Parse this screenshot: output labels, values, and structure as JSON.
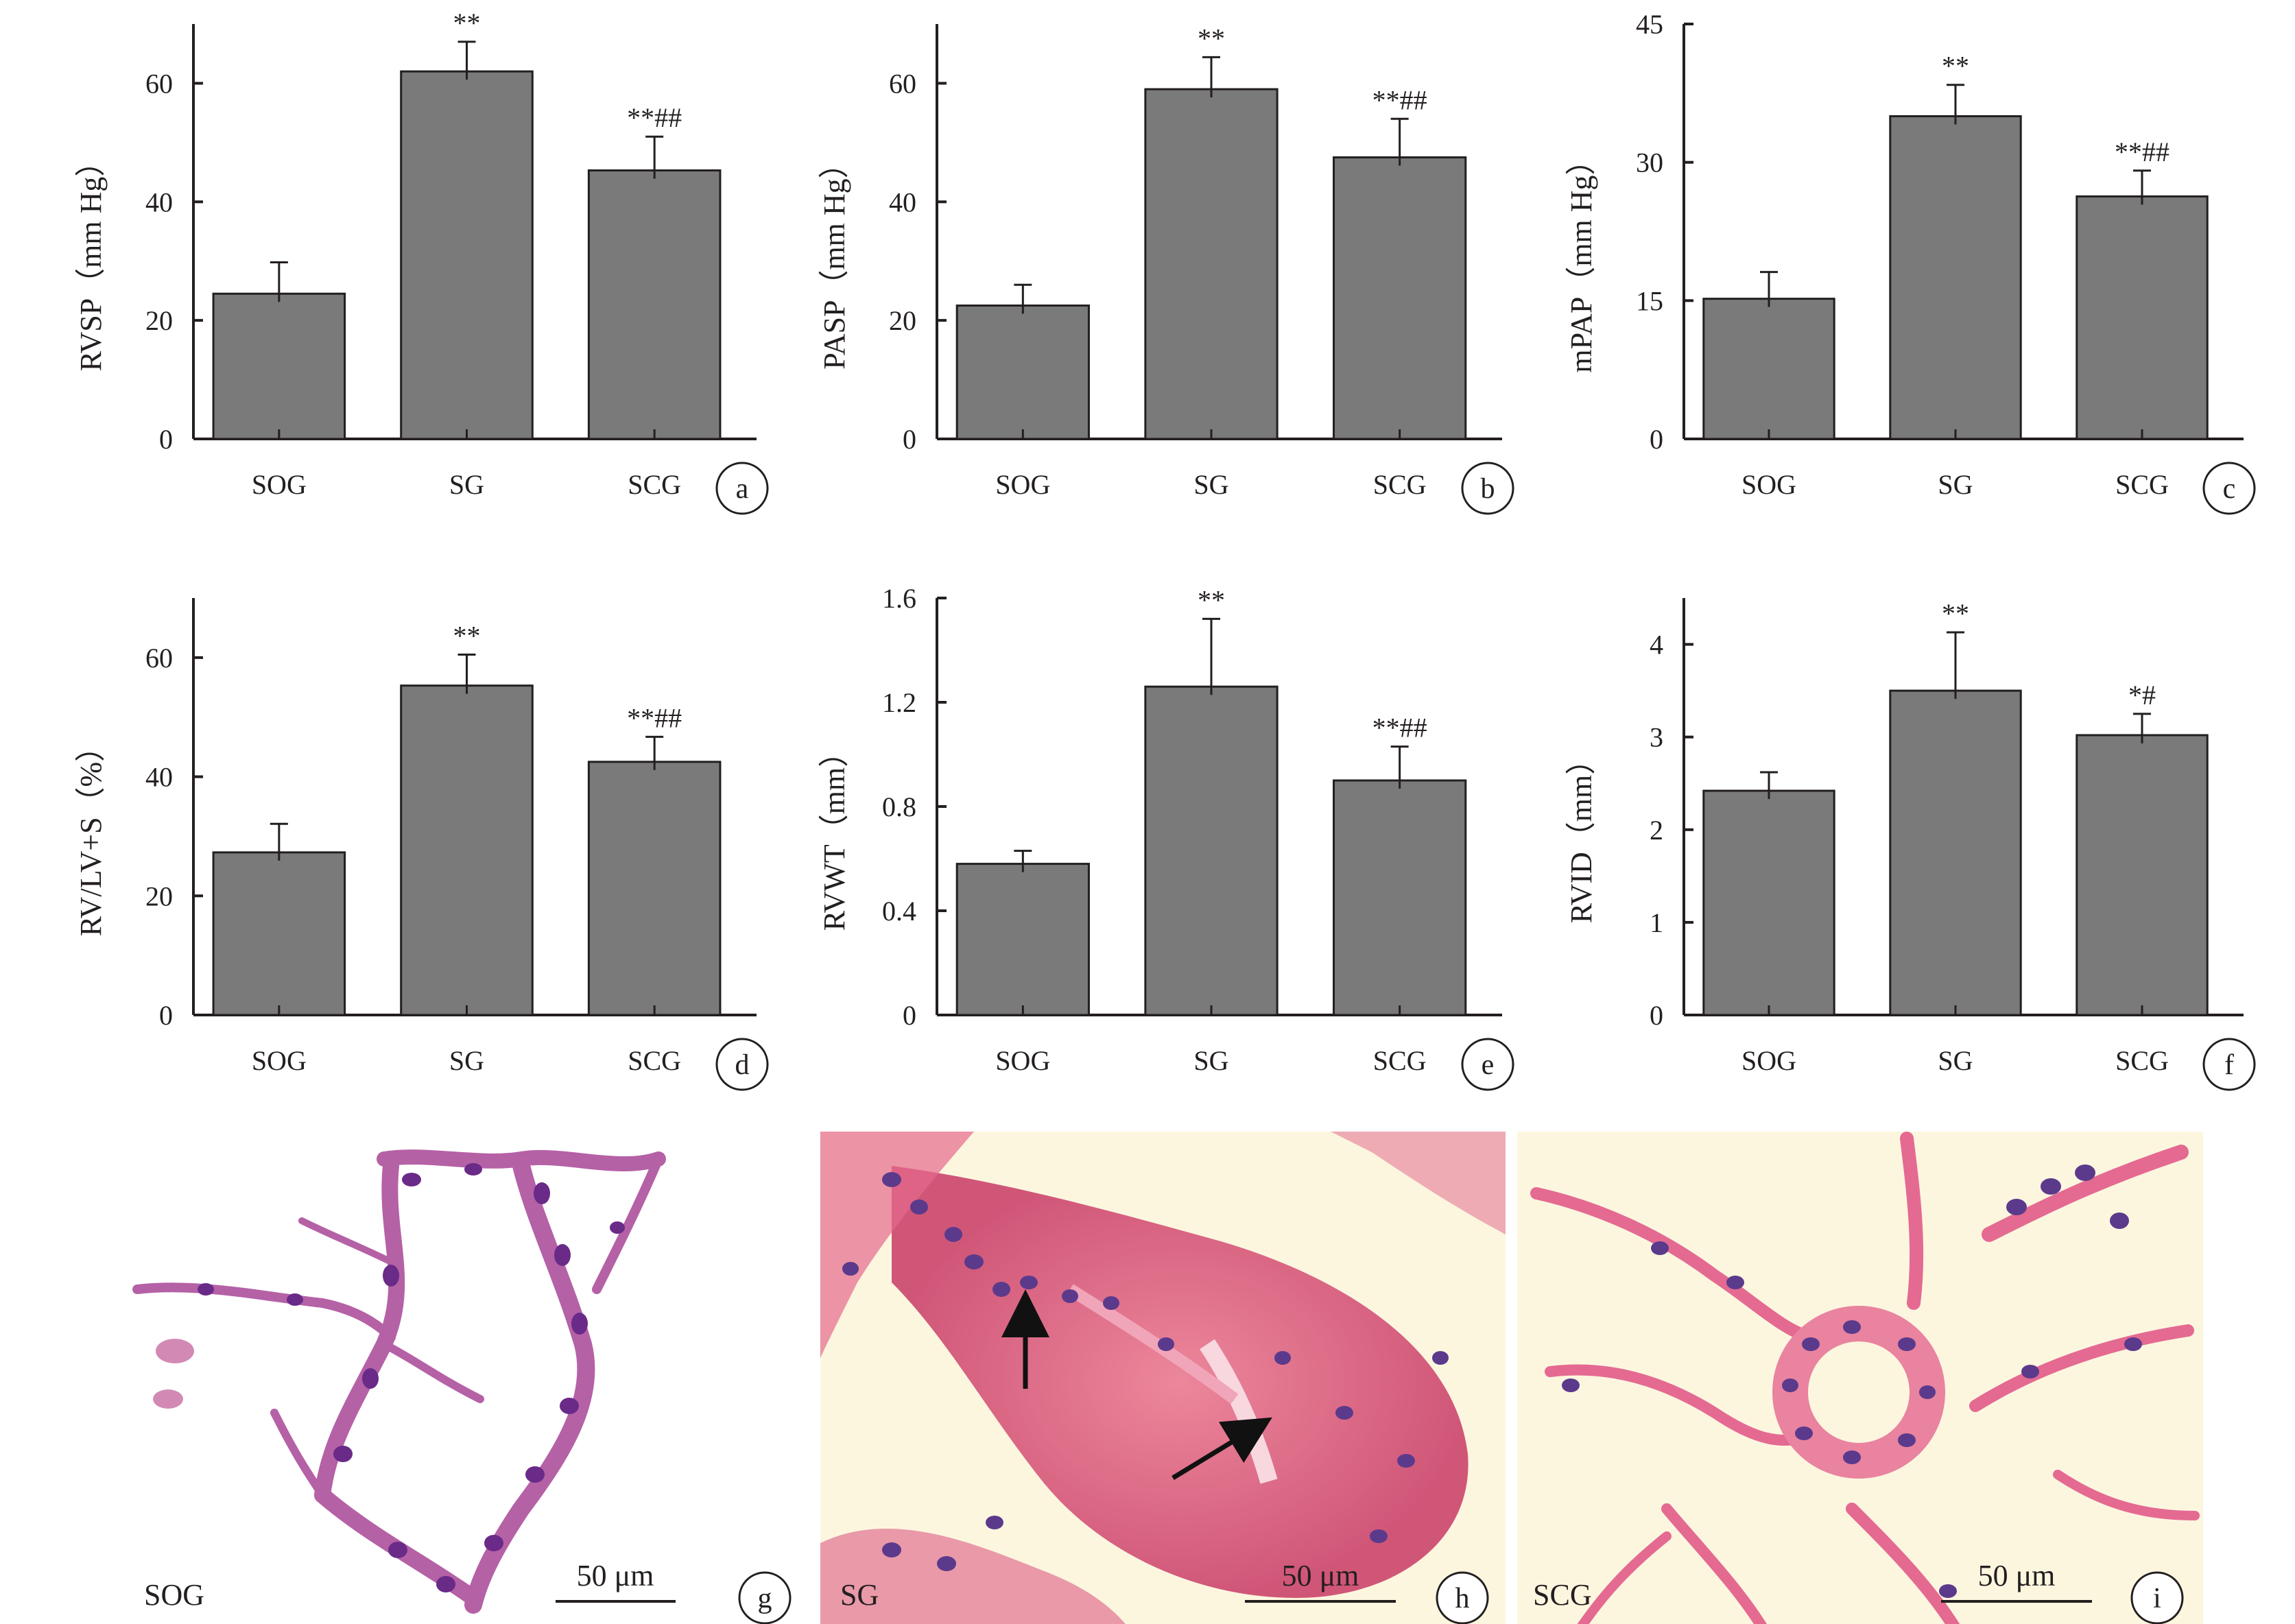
{
  "colors": {
    "bar": "#7a7a7a",
    "axis": "#231f20",
    "bg": "#ffffff"
  },
  "chart_data": [
    {
      "panel": "a",
      "type": "bar",
      "categories": [
        "SOG",
        "SG",
        "SCG"
      ],
      "values": [
        24.5,
        62.0,
        45.3
      ],
      "errors": [
        5.3,
        5.0,
        5.7
      ],
      "significance": [
        "",
        "**",
        "**##"
      ],
      "ylabel": "RVSP（mm Hg）",
      "ylim": [
        0,
        70
      ],
      "yticks": [
        0,
        20,
        40,
        60
      ]
    },
    {
      "panel": "b",
      "type": "bar",
      "categories": [
        "SOG",
        "SG",
        "SCG"
      ],
      "values": [
        22.5,
        59.0,
        47.5
      ],
      "errors": [
        3.5,
        5.4,
        6.5
      ],
      "significance": [
        "",
        "**",
        "**##"
      ],
      "ylabel": "PASP（mm Hg）",
      "ylim": [
        0,
        70
      ],
      "yticks": [
        0,
        20,
        40,
        60
      ]
    },
    {
      "panel": "c",
      "type": "bar",
      "categories": [
        "SOG",
        "SG",
        "SCG"
      ],
      "values": [
        15.2,
        35.0,
        26.3
      ],
      "errors": [
        2.9,
        3.4,
        2.8
      ],
      "significance": [
        "",
        "**",
        "**##"
      ],
      "ylabel": "mPAP（mm Hg）",
      "ylim": [
        0,
        45
      ],
      "yticks": [
        0,
        15,
        30,
        45
      ]
    },
    {
      "panel": "d",
      "type": "bar",
      "categories": [
        "SOG",
        "SG",
        "SCG"
      ],
      "values": [
        27.3,
        55.3,
        42.5
      ],
      "errors": [
        4.8,
        5.2,
        4.2
      ],
      "significance": [
        "",
        "**",
        "**##"
      ],
      "ylabel": "RV/LV+S（%）",
      "ylim": [
        0,
        70
      ],
      "yticks": [
        0,
        20,
        40,
        60
      ]
    },
    {
      "panel": "e",
      "type": "bar",
      "categories": [
        "SOG",
        "SG",
        "SCG"
      ],
      "values": [
        0.58,
        1.26,
        0.9
      ],
      "errors": [
        0.05,
        0.26,
        0.13
      ],
      "significance": [
        "",
        "**",
        "**##"
      ],
      "ylabel": "RVWT（mm）",
      "ylim": [
        0,
        1.6
      ],
      "yticks": [
        0,
        0.4,
        0.8,
        1.2,
        1.6
      ]
    },
    {
      "panel": "f",
      "type": "bar",
      "categories": [
        "SOG",
        "SG",
        "SCG"
      ],
      "values": [
        2.42,
        3.5,
        3.02
      ],
      "errors": [
        0.2,
        0.63,
        0.23
      ],
      "significance": [
        "",
        "**",
        "*#"
      ],
      "ylabel": "RVID（mm）",
      "ylim": [
        0,
        4.5
      ],
      "yticks": [
        0,
        1,
        2,
        3,
        4
      ]
    }
  ],
  "micrographs": [
    {
      "panel": "g",
      "group": "SOG",
      "scale": "50 μm"
    },
    {
      "panel": "h",
      "group": "SG",
      "scale": "50 μm"
    },
    {
      "panel": "i",
      "group": "SCG",
      "scale": "50 μm"
    }
  ]
}
